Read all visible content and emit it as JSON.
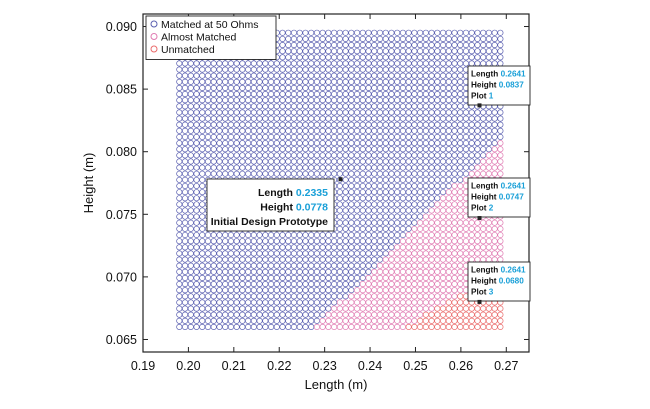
{
  "chart_data": {
    "type": "scatter",
    "xlabel": "Length (m)",
    "ylabel": "Height (m)",
    "xlim": [
      0.19,
      0.275
    ],
    "ylim": [
      0.064,
      0.091
    ],
    "xticks": [
      0.19,
      0.2,
      0.21,
      0.22,
      0.23,
      0.24,
      0.25,
      0.26,
      0.27
    ],
    "xtick_labels": [
      "0.19",
      "0.20",
      "0.21",
      "0.22",
      "0.23",
      "0.24",
      "0.25",
      "0.26",
      "0.27"
    ],
    "yticks": [
      0.065,
      0.07,
      0.075,
      0.08,
      0.085,
      0.09
    ],
    "ytick_labels": [
      "0.065",
      "0.070",
      "0.075",
      "0.080",
      "0.085",
      "0.090"
    ],
    "grid": false,
    "legend_position": "top-left",
    "sweep": {
      "x_range": [
        0.198,
        0.2687
      ],
      "y_range": [
        0.066,
        0.0895
      ],
      "x_steps": 56,
      "y_steps": 48
    },
    "series": [
      {
        "name": "Matched at 50 Ohms",
        "color": "#5a5fb0"
      },
      {
        "name": "Almost Matched",
        "color": "#e07ab2"
      },
      {
        "name": "Unmatched",
        "color": "#ea6a6a"
      }
    ],
    "region_boundaries": {
      "almost_matched_from": [
        [
          0.228,
          0.066
        ],
        [
          0.2687,
          0.081
        ]
      ],
      "unmatched_from": [
        [
          0.2475,
          0.066
        ],
        [
          0.2687,
          0.0705
        ]
      ]
    },
    "annotations": [
      {
        "id": "design",
        "x": 0.2335,
        "y": 0.0778,
        "lines": [
          [
            "Length ",
            "0.2335"
          ],
          [
            "Height ",
            "0.0778"
          ],
          [
            "Initial Design Prototype",
            ""
          ]
        ]
      },
      {
        "id": "plot1",
        "x": 0.2641,
        "y": 0.0837,
        "lines": [
          [
            "Length ",
            "0.2641"
          ],
          [
            "Height ",
            "0.0837"
          ],
          [
            "Plot ",
            "1"
          ]
        ]
      },
      {
        "id": "plot2",
        "x": 0.2641,
        "y": 0.0747,
        "lines": [
          [
            "Length ",
            "0.2641"
          ],
          [
            "Height ",
            "0.0747"
          ],
          [
            "Plot ",
            "2"
          ]
        ]
      },
      {
        "id": "plot3",
        "x": 0.2641,
        "y": 0.068,
        "lines": [
          [
            "Length ",
            "0.2641"
          ],
          [
            "Height ",
            "0.0680"
          ],
          [
            "Plot ",
            "3"
          ]
        ]
      }
    ]
  }
}
